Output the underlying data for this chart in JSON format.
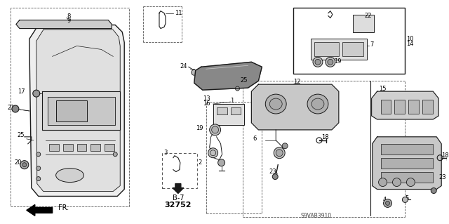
{
  "bg_color": "#ffffff",
  "diagram_code": "S9VAB3910",
  "line_color": "#1a1a1a",
  "dash_color": "#555555"
}
